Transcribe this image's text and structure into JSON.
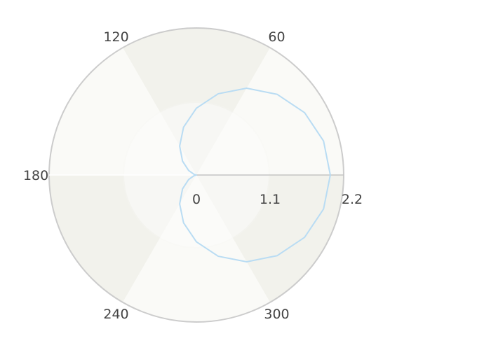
{
  "chart_data": {
    "type": "line",
    "coordinate_system": "polar",
    "angle_unit": "degrees",
    "angular_ticks": [
      {
        "angle": 60,
        "label": "60"
      },
      {
        "angle": 120,
        "label": "120"
      },
      {
        "angle": 180,
        "label": "180"
      },
      {
        "angle": 240,
        "label": "240"
      },
      {
        "angle": 300,
        "label": "300"
      }
    ],
    "radial_ticks": [
      {
        "value": 0,
        "label": "0"
      },
      {
        "value": 1.1,
        "label": "1.1"
      },
      {
        "value": 2.2,
        "label": "2.2"
      }
    ],
    "radial_range": [
      0,
      2.2
    ],
    "grid": true,
    "series": [
      {
        "color": "#b9dcf3",
        "theta": [
          0,
          15,
          30,
          45,
          60,
          75,
          90,
          105,
          120,
          135,
          150,
          165,
          180,
          195,
          210,
          225,
          240,
          255,
          270,
          285,
          300,
          315,
          330,
          345,
          360
        ],
        "r": [
          2.0,
          1.966,
          1.866,
          1.707,
          1.5,
          1.259,
          1.0,
          0.741,
          0.5,
          0.293,
          0.134,
          0.034,
          0.0,
          0.034,
          0.134,
          0.293,
          0.5,
          0.741,
          1.0,
          1.259,
          1.5,
          1.707,
          1.866,
          1.966,
          2.0
        ]
      }
    ],
    "colors": {
      "sector_shaded": "#f2f2ec",
      "sector_light": "#fafaf7",
      "outer_ring": "#cccccc",
      "axis_line": "#c4c4c4",
      "inner_band": "#f7f7f4"
    }
  }
}
